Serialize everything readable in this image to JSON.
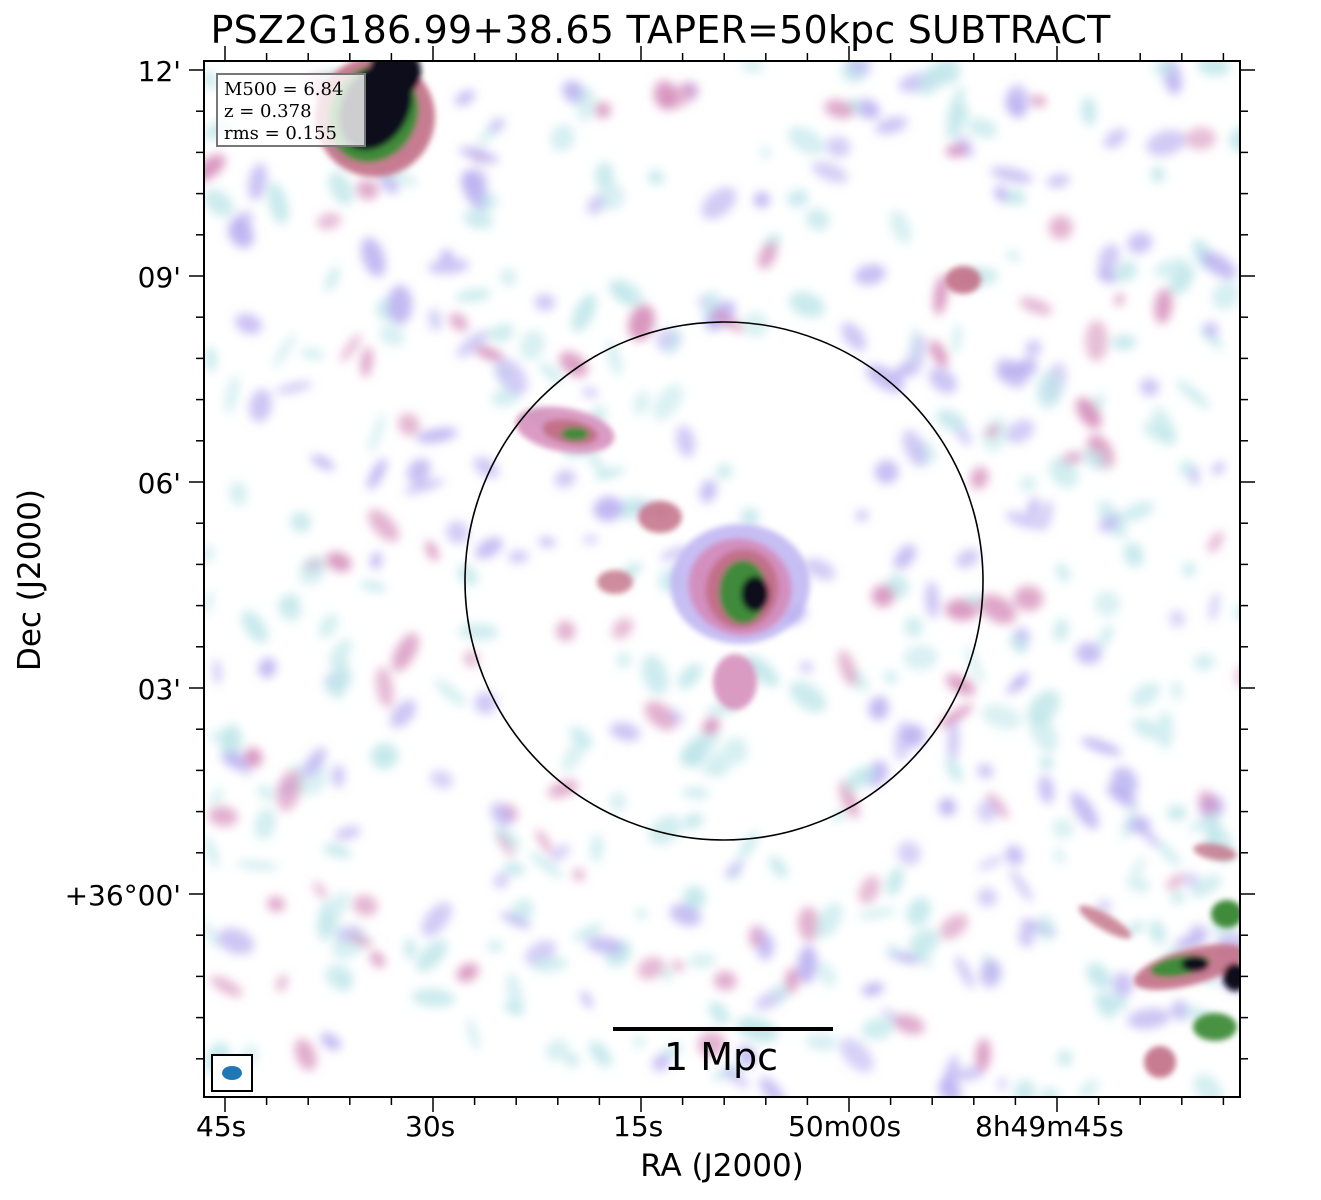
{
  "title": "PSZ2G186.99+38.65 TAPER=50kpc SUBTRACT",
  "axes": {
    "xlabel": "RA (J2000)",
    "ylabel": "Dec (J2000)",
    "xticks": [
      "45s",
      "30s",
      "15s",
      "50m00s",
      "8h49m45s"
    ],
    "yticks": [
      "12'",
      "09'",
      "06'",
      "03'",
      "+36°00'"
    ]
  },
  "info": {
    "line1": "M500 = 6.84",
    "line2": "z = 0.378",
    "line3": "rms = 0.155"
  },
  "scalebar": {
    "label": "1 Mpc"
  },
  "colors": {
    "faint": "#bfe6ea",
    "lavender": "#b9aef0",
    "pink": "#d48ab8",
    "rose": "#c26f86",
    "green": "#3f8b3a",
    "dark": "#0b0b1e",
    "beam": "#1f77b4"
  }
}
